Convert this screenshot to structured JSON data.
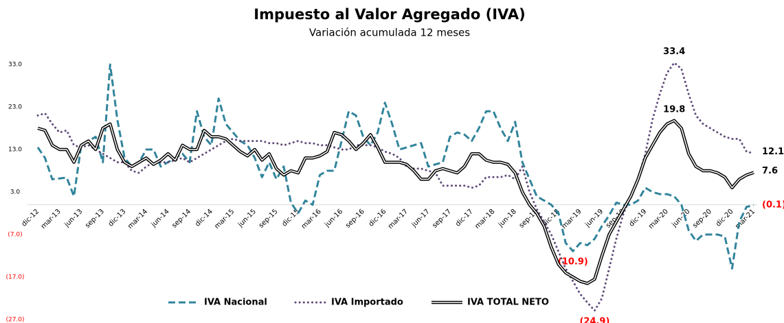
{
  "chart_data": {
    "type": "line",
    "title": "Impuesto al Valor Agregado (IVA)",
    "subtitle": "Variación acumulada 12 meses",
    "categories": [
      "dic-12",
      null,
      null,
      "mar-13",
      null,
      null,
      "jun-13",
      null,
      null,
      "sep-13",
      null,
      null,
      "dic-13",
      null,
      null,
      "mar-14",
      null,
      null,
      "jun-14",
      null,
      null,
      "sep-14",
      null,
      null,
      "dic-14",
      null,
      null,
      "mar-15",
      null,
      null,
      "jun-15",
      null,
      null,
      "sep-15",
      null,
      null,
      "dic-15",
      null,
      null,
      "mar-16",
      null,
      null,
      "jun-16",
      null,
      null,
      "sep-16",
      null,
      null,
      "dic-16",
      null,
      null,
      "mar-17",
      null,
      null,
      "jun-17",
      null,
      null,
      "sep-17",
      null,
      null,
      "dic-17",
      null,
      null,
      "mar-18",
      null,
      null,
      "jun-18",
      null,
      null,
      "sep-18",
      null,
      null,
      "dic-18",
      null,
      null,
      "mar-19",
      null,
      null,
      "jun-19",
      null,
      null,
      "sep-19",
      null,
      null,
      "dic-19",
      null,
      null,
      "mar-20",
      null,
      null,
      "jun-20",
      null,
      null,
      "sep-20",
      null,
      null,
      "dic-20",
      null,
      null,
      "mar-21"
    ],
    "series": [
      {
        "name": "IVA Nacional",
        "color": "#31849b",
        "style": "dashed",
        "values": [
          13.5,
          11,
          6,
          6.2,
          6.4,
          2,
          14,
          15,
          16,
          10,
          33,
          20,
          11,
          9,
          10,
          13,
          13,
          9,
          10,
          11,
          12,
          10,
          22,
          16,
          14,
          25,
          19,
          17,
          15,
          14,
          11,
          6.5,
          10,
          6,
          9,
          0.5,
          -2,
          1,
          0,
          7,
          8,
          8,
          15,
          22,
          21,
          16,
          14,
          17,
          24,
          19,
          13,
          13.5,
          14,
          14.5,
          9,
          9.5,
          10,
          16,
          17,
          16.5,
          15,
          18,
          22,
          22,
          18,
          15,
          19.5,
          10,
          6,
          2,
          1,
          0,
          -2,
          -9,
          -10.9,
          -9,
          -9.5,
          -8,
          -5,
          -2.5,
          0.5,
          0,
          0,
          1,
          4,
          3,
          2.5,
          2.5,
          2,
          0,
          -6,
          -8.5,
          -7,
          -7,
          -7,
          -7.5,
          -15,
          -4,
          -0.5,
          -0.1
        ],
        "value_labels": [
          null,
          null,
          null,
          null,
          null,
          null,
          null,
          null,
          null,
          null,
          null,
          null,
          null,
          null,
          null,
          null,
          null,
          null,
          null,
          null,
          null,
          null,
          null,
          null,
          null,
          null,
          null,
          null,
          null,
          null,
          null,
          null,
          null,
          null,
          null,
          null,
          null,
          null,
          null,
          null,
          null,
          null,
          null,
          null,
          null,
          null,
          null,
          null,
          null,
          null,
          null,
          null,
          null,
          null,
          null,
          null,
          null,
          null,
          null,
          null,
          null,
          null,
          null,
          null,
          null,
          null,
          null,
          null,
          null,
          null,
          null,
          null,
          null,
          null,
          "(10.9)",
          null,
          null,
          null,
          null,
          null,
          null,
          null,
          null,
          null,
          null,
          null,
          null,
          null,
          null,
          null,
          null,
          null,
          null,
          null,
          null,
          null,
          null,
          null,
          null,
          "(0.1)"
        ]
      },
      {
        "name": "IVA Importado",
        "color": "#604a7b",
        "style": "dotted",
        "values": [
          21,
          21.5,
          19,
          17,
          17.5,
          14,
          13.5,
          14,
          13,
          12,
          11,
          10,
          10,
          8,
          7.5,
          9,
          10,
          10,
          10,
          10.5,
          11,
          10,
          11,
          12,
          13,
          14,
          15,
          15.5,
          15,
          15,
          15,
          15,
          14.5,
          14.5,
          14,
          14.5,
          15,
          14.5,
          14.5,
          14,
          14,
          13.5,
          13,
          13,
          14,
          14,
          14,
          13.5,
          12.5,
          12,
          11,
          9,
          8.5,
          8.5,
          8,
          7.5,
          4.5,
          4.5,
          4.5,
          4.5,
          4,
          4.5,
          6.5,
          6.5,
          6.5,
          7,
          6,
          9,
          3,
          -1,
          -4,
          -7,
          -11,
          -15,
          -18,
          -21,
          -23,
          -24.9,
          -22,
          -15,
          -8,
          -2,
          2,
          6,
          12,
          20,
          26,
          31,
          33.4,
          32,
          26,
          21,
          19,
          18,
          17,
          16,
          15.5,
          15.5,
          12.5,
          12.1
        ],
        "value_labels": [
          null,
          null,
          null,
          null,
          null,
          null,
          null,
          null,
          null,
          null,
          null,
          null,
          null,
          null,
          null,
          null,
          null,
          null,
          null,
          null,
          null,
          null,
          null,
          null,
          null,
          null,
          null,
          null,
          null,
          null,
          null,
          null,
          null,
          null,
          null,
          null,
          null,
          null,
          null,
          null,
          null,
          null,
          null,
          null,
          null,
          null,
          null,
          null,
          null,
          null,
          null,
          null,
          null,
          null,
          null,
          null,
          null,
          null,
          null,
          null,
          null,
          null,
          null,
          null,
          null,
          null,
          null,
          null,
          null,
          null,
          null,
          null,
          null,
          null,
          null,
          null,
          null,
          "(24.9)",
          null,
          null,
          null,
          null,
          null,
          null,
          null,
          null,
          null,
          null,
          "33.4",
          null,
          null,
          null,
          null,
          null,
          null,
          null,
          null,
          null,
          null,
          "12.1"
        ]
      },
      {
        "name": "IVA TOTAL NETO",
        "color": "#000000",
        "style": "double",
        "values": [
          18,
          17.5,
          14,
          13,
          13,
          10,
          14,
          15,
          13,
          18,
          19,
          13,
          10,
          9,
          10,
          11,
          9.5,
          10.5,
          12,
          10.5,
          14,
          13,
          13,
          17.5,
          16,
          16,
          15.5,
          14,
          12.5,
          11.5,
          13,
          10.5,
          12,
          8.5,
          7,
          8,
          7.5,
          11,
          11,
          11.5,
          12.5,
          17,
          16.5,
          15,
          13,
          14.5,
          16.5,
          13.5,
          10,
          10,
          10,
          9.5,
          8,
          6,
          6,
          8,
          8.5,
          8,
          7.5,
          9,
          12,
          12,
          10.5,
          10,
          10,
          9.5,
          7.5,
          3,
          0,
          -2,
          -5,
          -10,
          -14,
          -16,
          -17,
          -18,
          -18.5,
          -17.5,
          -12,
          -7,
          -4,
          -1,
          2,
          6,
          11,
          14,
          17,
          19,
          19.8,
          18,
          12,
          9,
          8,
          8,
          7.5,
          6.5,
          4,
          6,
          7,
          7.6
        ],
        "value_labels": [
          null,
          null,
          null,
          null,
          null,
          null,
          null,
          null,
          null,
          null,
          null,
          null,
          null,
          null,
          null,
          null,
          null,
          null,
          null,
          null,
          null,
          null,
          null,
          null,
          null,
          null,
          null,
          null,
          null,
          null,
          null,
          null,
          null,
          null,
          null,
          null,
          null,
          null,
          null,
          null,
          null,
          null,
          null,
          null,
          null,
          null,
          null,
          null,
          null,
          null,
          null,
          null,
          null,
          null,
          null,
          null,
          null,
          null,
          null,
          null,
          null,
          null,
          null,
          null,
          null,
          null,
          null,
          null,
          null,
          null,
          null,
          null,
          null,
          null,
          null,
          null,
          null,
          null,
          null,
          null,
          null,
          null,
          null,
          null,
          null,
          null,
          null,
          null,
          "19.8",
          null,
          null,
          null,
          null,
          null,
          null,
          null,
          null,
          null,
          null,
          "7.6"
        ]
      }
    ],
    "ylim": [
      -27,
      33
    ],
    "yticks": [
      {
        "value": 33,
        "label": "33.0"
      },
      {
        "value": 23,
        "label": "23.0"
      },
      {
        "value": 13,
        "label": "13.0"
      },
      {
        "value": 3,
        "label": "3.0"
      },
      {
        "value": -7,
        "label": "(7.0)"
      },
      {
        "value": -17,
        "label": "(17.0)"
      },
      {
        "value": -27,
        "label": "(27.0)"
      }
    ],
    "grid": false,
    "legend": "bottom",
    "negative_label_color": "#ff0000"
  }
}
